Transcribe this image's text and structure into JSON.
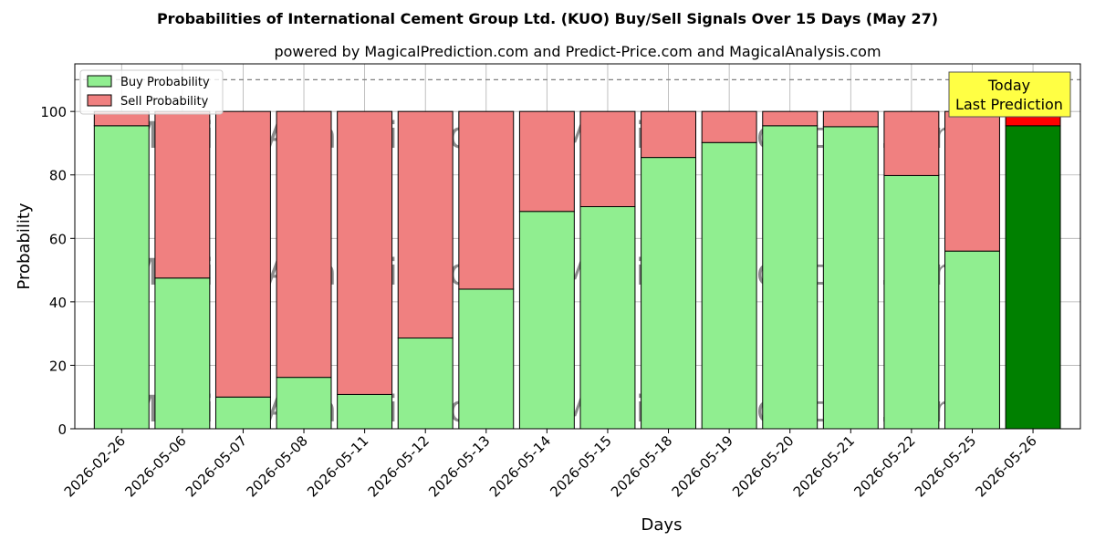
{
  "chart_data": {
    "type": "bar",
    "stacked": true,
    "title": "Probabilities of International Cement Group Ltd. (KUO) Buy/Sell Signals Over 15 Days (May 27)",
    "subtitle": "powered by MagicalPrediction.com and Predict-Price.com and MagicalAnalysis.com",
    "xlabel": "Days",
    "ylabel": "Probability",
    "ylim": [
      0,
      115
    ],
    "yticks": [
      0,
      20,
      40,
      60,
      80,
      100
    ],
    "grid": true,
    "legend_position": "top-left",
    "reference_line": 110,
    "categories": [
      "2026-02-26",
      "2026-05-06",
      "2026-05-07",
      "2026-05-08",
      "2026-05-11",
      "2026-05-12",
      "2026-05-13",
      "2026-05-14",
      "2026-05-15",
      "2026-05-18",
      "2026-05-19",
      "2026-05-20",
      "2026-05-21",
      "2026-05-22",
      "2026-05-25",
      "2026-05-26"
    ],
    "series": [
      {
        "name": "Buy Probability",
        "color": "#90ee90",
        "highlight_color": "#008000",
        "values": [
          95.5,
          47.5,
          10,
          16.2,
          10.8,
          28.6,
          44,
          68.5,
          70,
          85.5,
          90.2,
          95.5,
          95.2,
          79.8,
          56,
          95.5
        ]
      },
      {
        "name": "Sell Probability",
        "color": "#f08080",
        "highlight_color": "#ff0000",
        "values": [
          4.5,
          52.5,
          90,
          83.8,
          89.2,
          71.4,
          56,
          31.5,
          30,
          14.5,
          9.8,
          4.5,
          4.8,
          20.2,
          44,
          4.5
        ]
      }
    ],
    "highlight_index": 15,
    "annotation": {
      "line1": "Today",
      "line2": "Last Prediction",
      "bg": "#ffff44"
    },
    "watermarks": [
      "MagicalAnalysis.com",
      "MagicalPrediction.com"
    ]
  }
}
